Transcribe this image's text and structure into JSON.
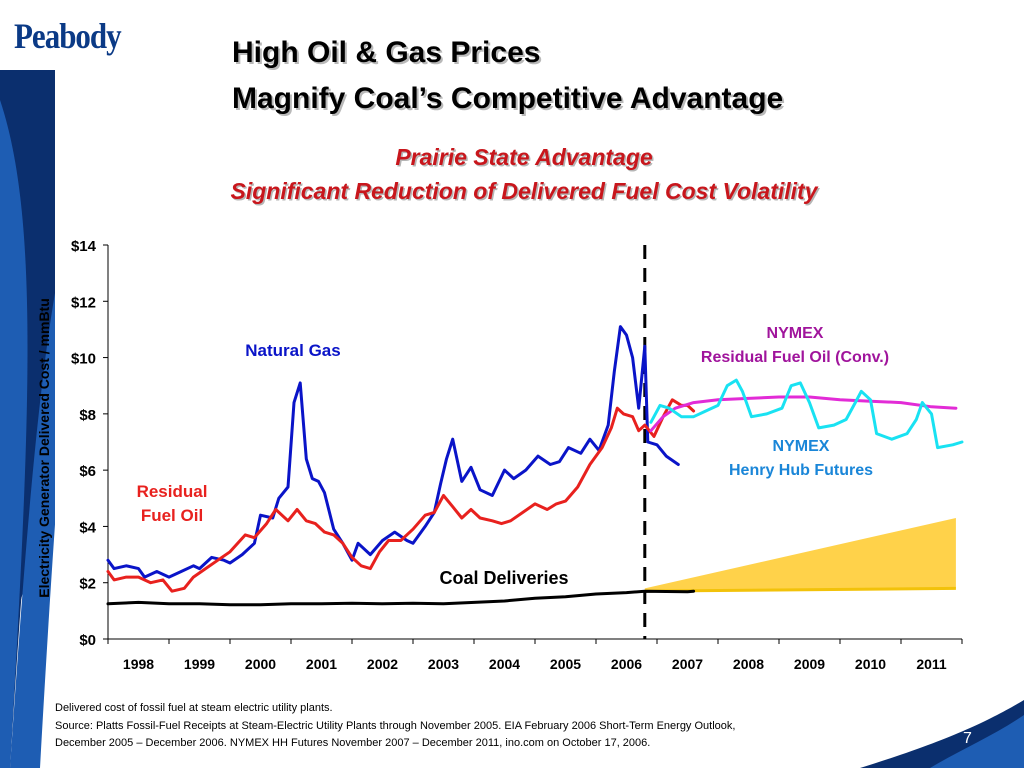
{
  "logo": "Peabody",
  "title_line1": "High Oil & Gas Prices",
  "title_line2": "Magnify Coal’s Competitive Advantage",
  "subtitle_line1": "Prairie State Advantage",
  "subtitle_line2": "Significant Reduction of Delivered Fuel Cost Volatility",
  "chart_data": {
    "type": "line",
    "title": "",
    "ylabel": "Electricity Generator Delivered Cost / mmBtu",
    "xlabel": "",
    "x_range": [
      1997.5,
      2011.5
    ],
    "ylim": [
      0,
      14
    ],
    "yticks": [
      0,
      2,
      4,
      6,
      8,
      10,
      12,
      14
    ],
    "ytick_labels": [
      "$0",
      "$2",
      "$4",
      "$6",
      "$8",
      "$10",
      "$12",
      "$14"
    ],
    "xtick_labels": [
      "1998",
      "1999",
      "2000",
      "2001",
      "2002",
      "2003",
      "2004",
      "2005",
      "2006",
      "2007",
      "2008",
      "2009",
      "2010",
      "2011"
    ],
    "grid": false,
    "divider_x": 2006.3,
    "series": [
      {
        "name": "Natural Gas",
        "color": "#0a14c8",
        "points": [
          [
            1997.5,
            2.8
          ],
          [
            1997.6,
            2.5
          ],
          [
            1997.8,
            2.6
          ],
          [
            1998.0,
            2.5
          ],
          [
            1998.1,
            2.2
          ],
          [
            1998.3,
            2.4
          ],
          [
            1998.5,
            2.2
          ],
          [
            1998.7,
            2.4
          ],
          [
            1998.9,
            2.6
          ],
          [
            1999.0,
            2.5
          ],
          [
            1999.2,
            2.9
          ],
          [
            1999.4,
            2.8
          ],
          [
            1999.5,
            2.7
          ],
          [
            1999.7,
            3.0
          ],
          [
            1999.9,
            3.4
          ],
          [
            2000.0,
            4.4
          ],
          [
            2000.2,
            4.3
          ],
          [
            2000.3,
            5.0
          ],
          [
            2000.45,
            5.4
          ],
          [
            2000.55,
            8.4
          ],
          [
            2000.65,
            9.1
          ],
          [
            2000.75,
            6.4
          ],
          [
            2000.85,
            5.7
          ],
          [
            2000.95,
            5.6
          ],
          [
            2001.05,
            5.2
          ],
          [
            2001.2,
            3.9
          ],
          [
            2001.35,
            3.4
          ],
          [
            2001.5,
            2.8
          ],
          [
            2001.6,
            3.4
          ],
          [
            2001.8,
            3.0
          ],
          [
            2002.0,
            3.5
          ],
          [
            2002.2,
            3.8
          ],
          [
            2002.4,
            3.5
          ],
          [
            2002.5,
            3.4
          ],
          [
            2002.7,
            4.0
          ],
          [
            2002.85,
            4.5
          ],
          [
            2002.95,
            5.5
          ],
          [
            2003.05,
            6.4
          ],
          [
            2003.15,
            7.1
          ],
          [
            2003.3,
            5.6
          ],
          [
            2003.45,
            6.1
          ],
          [
            2003.6,
            5.3
          ],
          [
            2003.8,
            5.1
          ],
          [
            2004.0,
            6.0
          ],
          [
            2004.15,
            5.7
          ],
          [
            2004.35,
            6.0
          ],
          [
            2004.55,
            6.5
          ],
          [
            2004.75,
            6.2
          ],
          [
            2004.9,
            6.3
          ],
          [
            2005.05,
            6.8
          ],
          [
            2005.25,
            6.6
          ],
          [
            2005.4,
            7.1
          ],
          [
            2005.55,
            6.7
          ],
          [
            2005.7,
            7.6
          ],
          [
            2005.8,
            9.5
          ],
          [
            2005.9,
            11.1
          ],
          [
            2006.0,
            10.8
          ],
          [
            2006.1,
            10.0
          ],
          [
            2006.2,
            8.2
          ],
          [
            2006.3,
            10.4
          ],
          [
            2006.35,
            7.0
          ],
          [
            2006.5,
            6.9
          ],
          [
            2006.65,
            6.5
          ],
          [
            2006.85,
            6.2
          ]
        ]
      },
      {
        "name": "Residual Fuel Oil",
        "color": "#e8211e",
        "points": [
          [
            1997.5,
            2.4
          ],
          [
            1997.6,
            2.1
          ],
          [
            1997.8,
            2.2
          ],
          [
            1998.0,
            2.2
          ],
          [
            1998.2,
            2.0
          ],
          [
            1998.4,
            2.1
          ],
          [
            1998.55,
            1.7
          ],
          [
            1998.75,
            1.8
          ],
          [
            1998.9,
            2.2
          ],
          [
            1999.1,
            2.5
          ],
          [
            1999.3,
            2.8
          ],
          [
            1999.5,
            3.1
          ],
          [
            1999.75,
            3.7
          ],
          [
            1999.9,
            3.6
          ],
          [
            2000.1,
            4.1
          ],
          [
            2000.25,
            4.6
          ],
          [
            2000.45,
            4.2
          ],
          [
            2000.6,
            4.6
          ],
          [
            2000.75,
            4.2
          ],
          [
            2000.9,
            4.1
          ],
          [
            2001.05,
            3.8
          ],
          [
            2001.2,
            3.7
          ],
          [
            2001.35,
            3.4
          ],
          [
            2001.5,
            2.9
          ],
          [
            2001.65,
            2.6
          ],
          [
            2001.8,
            2.5
          ],
          [
            2001.95,
            3.1
          ],
          [
            2002.1,
            3.5
          ],
          [
            2002.3,
            3.5
          ],
          [
            2002.5,
            3.9
          ],
          [
            2002.7,
            4.4
          ],
          [
            2002.85,
            4.5
          ],
          [
            2003.0,
            5.1
          ],
          [
            2003.15,
            4.7
          ],
          [
            2003.3,
            4.3
          ],
          [
            2003.45,
            4.6
          ],
          [
            2003.6,
            4.3
          ],
          [
            2003.8,
            4.2
          ],
          [
            2003.95,
            4.1
          ],
          [
            2004.1,
            4.2
          ],
          [
            2004.3,
            4.5
          ],
          [
            2004.5,
            4.8
          ],
          [
            2004.7,
            4.6
          ],
          [
            2004.85,
            4.8
          ],
          [
            2005.0,
            4.9
          ],
          [
            2005.2,
            5.4
          ],
          [
            2005.4,
            6.2
          ],
          [
            2005.6,
            6.8
          ],
          [
            2005.75,
            7.5
          ],
          [
            2005.85,
            8.2
          ],
          [
            2005.95,
            8.0
          ],
          [
            2006.1,
            7.9
          ],
          [
            2006.2,
            7.4
          ],
          [
            2006.3,
            7.6
          ],
          [
            2006.45,
            7.2
          ],
          [
            2006.6,
            7.9
          ],
          [
            2006.75,
            8.5
          ],
          [
            2006.9,
            8.3
          ],
          [
            2007.0,
            8.3
          ],
          [
            2007.1,
            8.1
          ]
        ]
      },
      {
        "name": "Coal Deliveries",
        "color": "#000000",
        "points": [
          [
            1997.5,
            1.25
          ],
          [
            1998.0,
            1.3
          ],
          [
            1998.5,
            1.25
          ],
          [
            1999.0,
            1.25
          ],
          [
            1999.5,
            1.22
          ],
          [
            2000.0,
            1.22
          ],
          [
            2000.5,
            1.25
          ],
          [
            2001.0,
            1.25
          ],
          [
            2001.5,
            1.27
          ],
          [
            2002.0,
            1.25
          ],
          [
            2002.5,
            1.27
          ],
          [
            2003.0,
            1.25
          ],
          [
            2003.5,
            1.3
          ],
          [
            2004.0,
            1.35
          ],
          [
            2004.5,
            1.45
          ],
          [
            2005.0,
            1.5
          ],
          [
            2005.5,
            1.6
          ],
          [
            2006.0,
            1.65
          ],
          [
            2006.3,
            1.7
          ],
          [
            2007.0,
            1.68
          ],
          [
            2007.1,
            1.7
          ]
        ]
      },
      {
        "name": "NYMEX Residual Fuel Oil (Conv.)",
        "color": "#e22bd6",
        "points": [
          [
            2006.4,
            7.4
          ],
          [
            2006.6,
            7.9
          ],
          [
            2006.8,
            8.2
          ],
          [
            2007.1,
            8.4
          ],
          [
            2007.5,
            8.5
          ],
          [
            2008.0,
            8.55
          ],
          [
            2008.5,
            8.6
          ],
          [
            2009.0,
            8.6
          ],
          [
            2009.5,
            8.5
          ],
          [
            2010.0,
            8.45
          ],
          [
            2010.5,
            8.4
          ],
          [
            2011.0,
            8.25
          ],
          [
            2011.4,
            8.2
          ]
        ]
      },
      {
        "name": "NYMEX Henry Hub Futures",
        "color": "#19e2f2",
        "points": [
          [
            2006.4,
            7.7
          ],
          [
            2006.55,
            8.3
          ],
          [
            2006.7,
            8.2
          ],
          [
            2006.9,
            7.9
          ],
          [
            2007.1,
            7.9
          ],
          [
            2007.3,
            8.1
          ],
          [
            2007.5,
            8.3
          ],
          [
            2007.65,
            9.0
          ],
          [
            2007.8,
            9.2
          ],
          [
            2007.9,
            8.8
          ],
          [
            2008.05,
            7.9
          ],
          [
            2008.3,
            8.0
          ],
          [
            2008.55,
            8.2
          ],
          [
            2008.7,
            9.0
          ],
          [
            2008.85,
            9.1
          ],
          [
            2009.0,
            8.4
          ],
          [
            2009.15,
            7.5
          ],
          [
            2009.4,
            7.6
          ],
          [
            2009.6,
            7.8
          ],
          [
            2009.75,
            8.4
          ],
          [
            2009.85,
            8.8
          ],
          [
            2010.0,
            8.5
          ],
          [
            2010.1,
            7.3
          ],
          [
            2010.35,
            7.1
          ],
          [
            2010.6,
            7.3
          ],
          [
            2010.75,
            7.8
          ],
          [
            2010.85,
            8.4
          ],
          [
            2011.0,
            8.0
          ],
          [
            2011.1,
            6.8
          ],
          [
            2011.35,
            6.9
          ],
          [
            2011.5,
            7.0
          ]
        ]
      }
    ],
    "coal_band": {
      "name": "Coal",
      "fill_color": "#ffd24a",
      "edge_color": "#f2c20a",
      "upper": [
        [
          2006.3,
          1.8
        ],
        [
          2011.4,
          4.3
        ]
      ],
      "lower": [
        [
          2006.3,
          1.7
        ],
        [
          2011.4,
          1.8
        ]
      ]
    },
    "annotations": {
      "natural_gas": "Natural Gas",
      "residual_line1": "Residual",
      "residual_line2": "Fuel Oil",
      "coal": "Coal Deliveries",
      "nymex_oil_line1": "NYMEX",
      "nymex_oil_line2": "Residual Fuel Oil (Conv.)",
      "nymex_gas_line1": "NYMEX",
      "nymex_gas_line2": "Henry Hub Futures"
    }
  },
  "source_line1": "Delivered cost of fossil fuel at steam electric utility plants.",
  "source_line2": "Source: Platts Fossil-Fuel Receipts at Steam-Electric Utility Plants through November 2005.  EIA February 2006 Short-Term Energy Outlook,",
  "source_line3": "December 2005 – December 2006.  NYMEX HH Futures November 2007 – December 2011, ino.com on October 17, 2006.",
  "page_number": "7",
  "colors": {
    "navy": "#0b2f6e",
    "blue": "#1e5db3",
    "title_red": "#c8161c"
  }
}
